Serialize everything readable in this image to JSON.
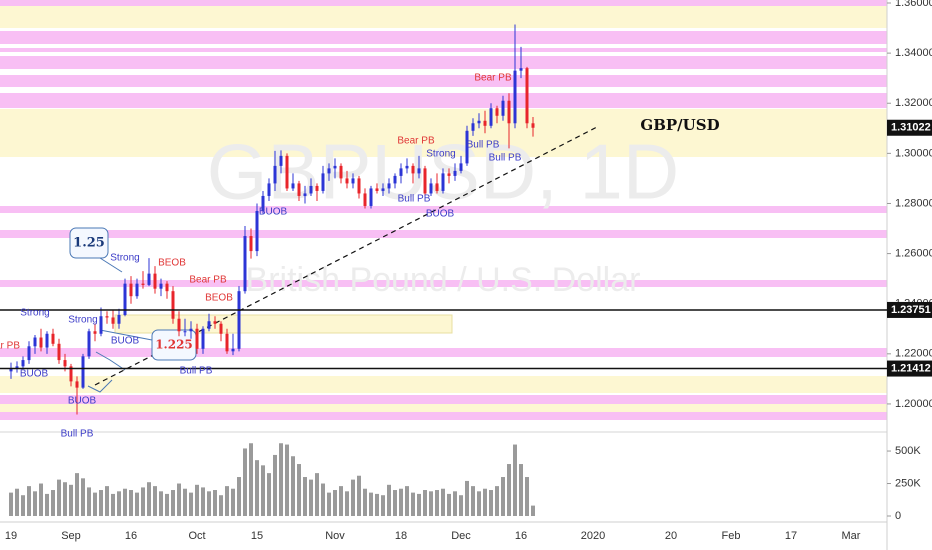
{
  "chart_data": {
    "type": "candlestick",
    "title": "GBPUSD, 1D",
    "subtitle": "British Pound / U.S. Dollar",
    "up_color": "#2c35d6",
    "down_color": "#e8252b",
    "categories": [
      "19",
      null,
      null,
      null,
      null,
      null,
      null,
      null,
      null,
      null,
      "Sep",
      null,
      null,
      null,
      null,
      null,
      null,
      null,
      null,
      null,
      "16",
      null,
      null,
      null,
      null,
      null,
      null,
      null,
      null,
      null,
      null,
      "Oct",
      null,
      null,
      null,
      null,
      null,
      null,
      null,
      null,
      null,
      "15",
      null,
      null,
      null,
      null,
      null,
      null,
      null,
      null,
      null,
      null,
      null,
      null,
      "Nov",
      null,
      null,
      null,
      null,
      null,
      null,
      null,
      null,
      null,
      null,
      "18",
      null,
      null,
      null,
      null,
      null,
      null,
      null,
      null,
      null,
      "Dec",
      null,
      null,
      null,
      null,
      null,
      null,
      null,
      null,
      null,
      "16",
      null,
      null
    ],
    "future_categories": [
      "2020",
      "20",
      "Feb",
      "17",
      "Mar"
    ],
    "open": [
      1.213,
      1.214,
      1.215,
      1.2175,
      1.223,
      1.2265,
      1.2225,
      1.228,
      1.224,
      1.2175,
      1.215,
      1.209,
      1.2065,
      1.219,
      1.229,
      1.228,
      1.235,
      1.2345,
      1.232,
      1.2355,
      1.248,
      1.243,
      1.248,
      1.2475,
      1.252,
      1.246,
      1.248,
      1.245,
      1.234,
      1.229,
      1.229,
      1.23,
      1.222,
      1.23,
      1.233,
      1.232,
      1.228,
      1.221,
      1.222,
      1.245,
      1.267,
      1.261,
      1.277,
      1.283,
      1.288,
      1.295,
      1.299,
      1.286,
      1.288,
      1.283,
      1.284,
      1.287,
      1.285,
      1.292,
      1.294,
      1.295,
      1.29,
      1.288,
      1.29,
      1.284,
      1.279,
      1.286,
      1.285,
      1.286,
      1.288,
      1.291,
      1.294,
      1.295,
      1.292,
      1.294,
      1.284,
      1.288,
      1.285,
      1.292,
      1.291,
      1.293,
      1.296,
      1.309,
      1.312,
      1.313,
      1.311,
      1.318,
      1.315,
      1.321,
      1.312,
      1.333,
      1.334,
      1.312
    ],
    "high": [
      1.2165,
      1.217,
      1.219,
      1.225,
      1.2275,
      1.23,
      1.229,
      1.23,
      1.226,
      1.22,
      1.216,
      1.211,
      1.22,
      1.23,
      1.232,
      1.2385,
      1.237,
      1.2375,
      1.238,
      1.25,
      1.251,
      1.25,
      1.253,
      1.2582,
      1.255,
      1.25,
      1.249,
      1.247,
      1.237,
      1.234,
      1.233,
      1.232,
      1.231,
      1.236,
      1.235,
      1.233,
      1.23,
      1.228,
      1.247,
      1.271,
      1.27,
      1.28,
      1.285,
      1.29,
      1.301,
      1.3012,
      1.3,
      1.292,
      1.289,
      1.287,
      1.29,
      1.288,
      1.295,
      1.296,
      1.298,
      1.296,
      1.293,
      1.292,
      1.291,
      1.286,
      1.287,
      1.288,
      1.288,
      1.29,
      1.292,
      1.296,
      1.298,
      1.296,
      1.299,
      1.295,
      1.29,
      1.292,
      1.294,
      1.294,
      1.296,
      1.299,
      1.311,
      1.314,
      1.316,
      1.317,
      1.32,
      1.319,
      1.323,
      1.324,
      1.3514,
      1.3425,
      1.3345,
      1.3145
    ],
    "low": [
      1.21,
      1.2125,
      1.214,
      1.216,
      1.22,
      1.221,
      1.22,
      1.223,
      1.216,
      1.213,
      1.207,
      1.1958,
      1.206,
      1.218,
      1.225,
      1.227,
      1.232,
      1.23,
      1.23,
      1.235,
      1.24,
      1.242,
      1.246,
      1.247,
      1.244,
      1.243,
      1.242,
      1.232,
      1.227,
      1.227,
      1.226,
      1.22,
      1.22,
      1.229,
      1.23,
      1.225,
      1.22,
      1.2195,
      1.221,
      1.244,
      1.258,
      1.259,
      1.276,
      1.281,
      1.285,
      1.292,
      1.285,
      1.285,
      1.281,
      1.28,
      1.283,
      1.281,
      1.284,
      1.289,
      1.29,
      1.288,
      1.286,
      1.286,
      1.282,
      1.278,
      1.278,
      1.284,
      1.283,
      1.284,
      1.286,
      1.288,
      1.292,
      1.288,
      1.29,
      1.283,
      1.283,
      1.284,
      1.284,
      1.288,
      1.289,
      1.292,
      1.295,
      1.307,
      1.31,
      1.308,
      1.31,
      1.312,
      1.313,
      1.302,
      1.31,
      1.33,
      1.31,
      1.3067
    ],
    "close": [
      1.214,
      1.215,
      1.2175,
      1.223,
      1.2265,
      1.2225,
      1.228,
      1.224,
      1.2175,
      1.215,
      1.209,
      1.2065,
      1.219,
      1.229,
      1.228,
      1.235,
      1.2345,
      1.232,
      1.2355,
      1.248,
      1.243,
      1.248,
      1.2475,
      1.252,
      1.246,
      1.248,
      1.245,
      1.234,
      1.229,
      1.229,
      1.23,
      1.222,
      1.23,
      1.233,
      1.232,
      1.228,
      1.221,
      1.222,
      1.245,
      1.267,
      1.261,
      1.277,
      1.283,
      1.288,
      1.295,
      1.299,
      1.286,
      1.288,
      1.283,
      1.284,
      1.287,
      1.285,
      1.292,
      1.294,
      1.295,
      1.29,
      1.288,
      1.29,
      1.284,
      1.279,
      1.286,
      1.285,
      1.286,
      1.288,
      1.291,
      1.294,
      1.295,
      1.292,
      1.294,
      1.284,
      1.288,
      1.285,
      1.292,
      1.291,
      1.293,
      1.296,
      1.309,
      1.312,
      1.313,
      1.311,
      1.318,
      1.315,
      1.321,
      1.312,
      1.333,
      1.334,
      1.312,
      1.31022
    ],
    "ylim": [
      1.1888,
      1.3612
    ],
    "yticks": [
      {
        "value": 1.2,
        "label": "1.20000"
      },
      {
        "value": 1.22,
        "label": "1.22000"
      },
      {
        "value": 1.24,
        "label": "1.24000"
      },
      {
        "value": 1.26,
        "label": "1.26000"
      },
      {
        "value": 1.28,
        "label": "1.28000"
      },
      {
        "value": 1.3,
        "label": "1.30000"
      },
      {
        "value": 1.32,
        "label": "1.32000"
      },
      {
        "value": 1.34,
        "label": "1.34000"
      },
      {
        "value": 1.36,
        "label": "1.36000"
      }
    ],
    "price_lines": [
      {
        "value": 1.23751,
        "label": "1.23751"
      },
      {
        "value": 1.21412,
        "label": "1.21412"
      }
    ],
    "last_price": {
      "value": 1.31022,
      "label": "1.31022"
    },
    "volume": {
      "color": "#9a9a9a",
      "values": [
        180000,
        210000,
        160000,
        230000,
        190000,
        250000,
        170000,
        200000,
        280000,
        260000,
        240000,
        330000,
        290000,
        220000,
        180000,
        200000,
        230000,
        170000,
        190000,
        210000,
        200000,
        180000,
        220000,
        260000,
        230000,
        190000,
        170000,
        200000,
        250000,
        210000,
        180000,
        240000,
        220000,
        190000,
        200000,
        160000,
        230000,
        210000,
        300000,
        520000,
        560000,
        430000,
        390000,
        330000,
        470000,
        560000,
        550000,
        460000,
        400000,
        300000,
        280000,
        330000,
        250000,
        180000,
        200000,
        230000,
        190000,
        280000,
        310000,
        210000,
        180000,
        170000,
        160000,
        240000,
        200000,
        210000,
        230000,
        180000,
        170000,
        200000,
        190000,
        200000,
        210000,
        170000,
        190000,
        160000,
        270000,
        230000,
        190000,
        210000,
        200000,
        230000,
        300000,
        400000,
        550000,
        400000,
        300000,
        80000
      ],
      "ylim": [
        0,
        585000
      ],
      "yticks": [
        {
          "value": 0,
          "label": "0"
        },
        {
          "value": 250000,
          "label": "250K"
        },
        {
          "value": 500000,
          "label": "500K"
        }
      ]
    },
    "annotations": [
      "Bear PB",
      "Strong",
      "BUOB",
      "Bull PB",
      "BUOB",
      "Strong",
      "BUOB",
      "1.25",
      "Strong",
      "BEOB",
      "Bear PB",
      "BEOB",
      "1.225",
      "Bull PB",
      "BUOB",
      "Bear PB",
      "Strong",
      "Bull PB",
      "BUOB",
      "Bear PB",
      "Bull PB",
      "Bull PB",
      "GBP/USD"
    ]
  }
}
